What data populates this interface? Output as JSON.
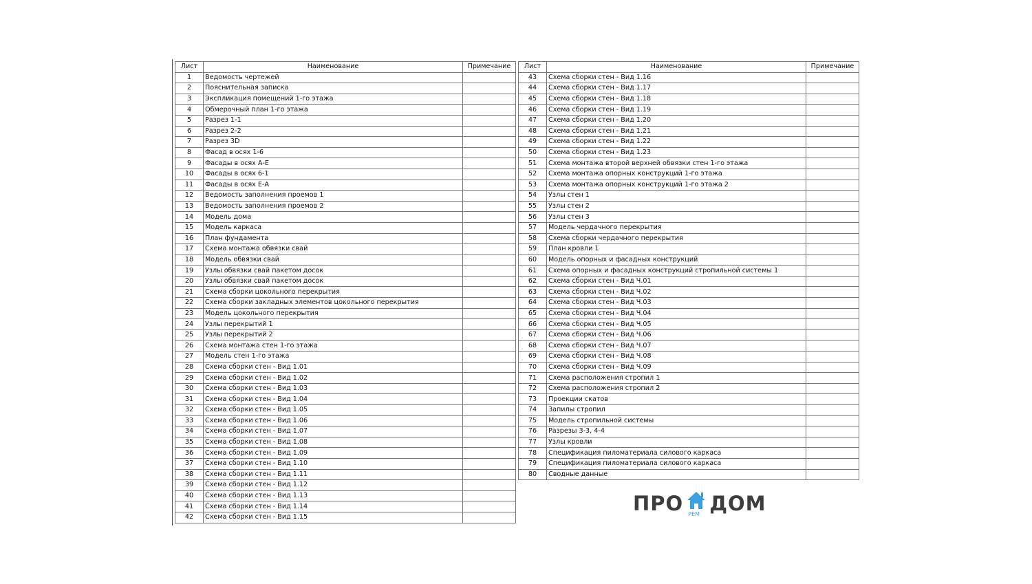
{
  "headers": {
    "sheet": "Лист",
    "name": "Наименование",
    "note": "Примечание"
  },
  "watermark": {
    "left": "ПРО",
    "right": "ДОМ",
    "sub": "РЕМ",
    "icon": "house-icon",
    "color": "#3aa0e0"
  },
  "left_rows": [
    {
      "n": "1",
      "name": "Ведомость чертежей",
      "note": ""
    },
    {
      "n": "2",
      "name": "Пояснительная записка",
      "note": ""
    },
    {
      "n": "3",
      "name": "Экспликация помещений 1-го этажа",
      "note": ""
    },
    {
      "n": "4",
      "name": "Обмерочный план 1-го этажа",
      "note": ""
    },
    {
      "n": "5",
      "name": "Разрез 1-1",
      "note": ""
    },
    {
      "n": "6",
      "name": "Разрез 2-2",
      "note": ""
    },
    {
      "n": "7",
      "name": "Разрез 3D",
      "note": ""
    },
    {
      "n": "8",
      "name": "Фасад в осях 1-6",
      "note": ""
    },
    {
      "n": "9",
      "name": "Фасады в осях А-Е",
      "note": ""
    },
    {
      "n": "10",
      "name": "Фасады в осях 6-1",
      "note": ""
    },
    {
      "n": "11",
      "name": "Фасады в осях Е-А",
      "note": ""
    },
    {
      "n": "12",
      "name": "Ведомость заполнения проемов 1",
      "note": ""
    },
    {
      "n": "13",
      "name": "Ведомость заполнения проемов 2",
      "note": ""
    },
    {
      "n": "14",
      "name": "Модель дома",
      "note": ""
    },
    {
      "n": "15",
      "name": "Модель каркаса",
      "note": ""
    },
    {
      "n": "16",
      "name": "План фундамента",
      "note": ""
    },
    {
      "n": "17",
      "name": "Схема монтажа обвязки свай",
      "note": ""
    },
    {
      "n": "18",
      "name": "Модель обвязки свай",
      "note": ""
    },
    {
      "n": "19",
      "name": "Узлы обвязки свай пакетом досок",
      "note": ""
    },
    {
      "n": "20",
      "name": "Узлы обвязки свай пакетом досок",
      "note": ""
    },
    {
      "n": "21",
      "name": "Схема сборки цокольного перекрытия",
      "note": ""
    },
    {
      "n": "22",
      "name": "Схема сборки закладных элементов цокольного перекрытия",
      "note": ""
    },
    {
      "n": "23",
      "name": "Модель цокольного перекрытия",
      "note": ""
    },
    {
      "n": "24",
      "name": "Узлы перекрытий 1",
      "note": ""
    },
    {
      "n": "25",
      "name": "Узлы  перекрытий 2",
      "note": ""
    },
    {
      "n": "26",
      "name": "Схема монтажа стен 1-го этажа",
      "note": ""
    },
    {
      "n": "27",
      "name": "Модель стен 1-го этажа",
      "note": ""
    },
    {
      "n": "28",
      "name": "Схема сборки стен - Вид 1.01",
      "note": ""
    },
    {
      "n": "29",
      "name": "Схема сборки стен - Вид 1.02",
      "note": ""
    },
    {
      "n": "30",
      "name": "Схема сборки стен - Вид 1.03",
      "note": ""
    },
    {
      "n": "31",
      "name": "Схема сборки стен - Вид 1.04",
      "note": ""
    },
    {
      "n": "32",
      "name": "Схема сборки стен - Вид 1.05",
      "note": ""
    },
    {
      "n": "33",
      "name": "Схема сборки стен - Вид 1.06",
      "note": ""
    },
    {
      "n": "34",
      "name": "Схема сборки стен - Вид 1.07",
      "note": ""
    },
    {
      "n": "35",
      "name": "Схема сборки стен - Вид 1.08",
      "note": ""
    },
    {
      "n": "36",
      "name": "Схема сборки стен - Вид 1.09",
      "note": ""
    },
    {
      "n": "37",
      "name": "Схема сборки стен - Вид 1.10",
      "note": ""
    },
    {
      "n": "38",
      "name": "Схема сборки стен - Вид 1.11",
      "note": ""
    },
    {
      "n": "39",
      "name": "Схема сборки стен - Вид 1.12",
      "note": ""
    },
    {
      "n": "40",
      "name": "Схема сборки стен - Вид 1.13",
      "note": ""
    },
    {
      "n": "41",
      "name": "Схема сборки стен - Вид 1.14",
      "note": ""
    },
    {
      "n": "42",
      "name": "Схема сборки стен - Вид 1.15",
      "note": ""
    }
  ],
  "right_rows": [
    {
      "n": "43",
      "name": "Схема сборки стен - Вид 1.16",
      "note": ""
    },
    {
      "n": "44",
      "name": "Схема сборки стен - Вид 1.17",
      "note": ""
    },
    {
      "n": "45",
      "name": "Схема сборки стен - Вид 1.18",
      "note": ""
    },
    {
      "n": "46",
      "name": "Схема сборки стен - Вид 1.19",
      "note": ""
    },
    {
      "n": "47",
      "name": "Схема сборки стен - Вид 1.20",
      "note": ""
    },
    {
      "n": "48",
      "name": "Схема сборки стен - Вид 1.21",
      "note": ""
    },
    {
      "n": "49",
      "name": "Схема сборки стен - Вид 1.22",
      "note": ""
    },
    {
      "n": "50",
      "name": "Схема сборки стен - Вид 1.23",
      "note": ""
    },
    {
      "n": "51",
      "name": "Схема монтажа второй верхней обвязки стен 1-го этажа",
      "note": ""
    },
    {
      "n": "52",
      "name": "Схема монтажа опорных конструкций 1-го этажа",
      "note": ""
    },
    {
      "n": "53",
      "name": "Схема монтажа опорных конструкций 1-го этажа 2",
      "note": ""
    },
    {
      "n": "54",
      "name": "Узлы стен 1",
      "note": ""
    },
    {
      "n": "55",
      "name": "Узлы стен 2",
      "note": ""
    },
    {
      "n": "56",
      "name": "Узлы стен 3",
      "note": ""
    },
    {
      "n": "57",
      "name": "Модель чердачного перекрытия",
      "note": ""
    },
    {
      "n": "58",
      "name": "Схема сборки чердачного перекрытия",
      "note": ""
    },
    {
      "n": "59",
      "name": "План кровли 1",
      "note": ""
    },
    {
      "n": "60",
      "name": "Модель опорных и фасадных конструкций",
      "note": ""
    },
    {
      "n": "61",
      "name": "Схема опорных и фасадных конструкций стропильной системы 1",
      "note": ""
    },
    {
      "n": "62",
      "name": "Схема сборки стен - Вид Ч.01",
      "note": ""
    },
    {
      "n": "63",
      "name": "Схема сборки стен - Вид Ч.02",
      "note": ""
    },
    {
      "n": "64",
      "name": "Схема сборки стен - Вид Ч.03",
      "note": ""
    },
    {
      "n": "65",
      "name": "Схема сборки стен - Вид Ч.04",
      "note": ""
    },
    {
      "n": "66",
      "name": "Схема сборки стен - Вид Ч.05",
      "note": ""
    },
    {
      "n": "67",
      "name": "Схема сборки стен - Вид Ч.06",
      "note": ""
    },
    {
      "n": "68",
      "name": "Схема сборки стен - Вид Ч.07",
      "note": ""
    },
    {
      "n": "69",
      "name": "Схема сборки стен - Вид Ч.08",
      "note": ""
    },
    {
      "n": "70",
      "name": "Схема сборки стен - Вид Ч.09",
      "note": ""
    },
    {
      "n": "71",
      "name": "Схема расположения стропил 1",
      "note": ""
    },
    {
      "n": "72",
      "name": "Схема расположения стропил 2",
      "note": ""
    },
    {
      "n": "73",
      "name": "Проекции скатов",
      "note": ""
    },
    {
      "n": "74",
      "name": "Запилы стропил",
      "note": ""
    },
    {
      "n": "75",
      "name": "Модель стропильной системы",
      "note": ""
    },
    {
      "n": "76",
      "name": "Разрезы 3-3, 4-4",
      "note": ""
    },
    {
      "n": "77",
      "name": "Узлы кровли",
      "note": ""
    },
    {
      "n": "78",
      "name": "Спецификация пиломатериала силового каркаса",
      "note": ""
    },
    {
      "n": "79",
      "name": "Спецификация пиломатериала силового каркаса",
      "note": ""
    },
    {
      "n": "80",
      "name": "Сводные данные",
      "note": ""
    }
  ]
}
